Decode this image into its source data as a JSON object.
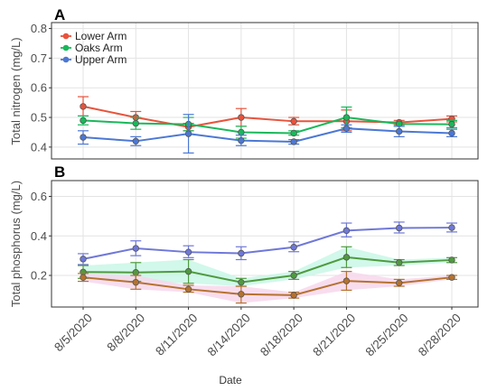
{
  "colors": {
    "lower_arm": "#e8533c",
    "oaks_arm": "#19b85a",
    "upper_arm": "#4c78d4",
    "panel_b_low": "#b5722f",
    "panel_b_mid": "#4f9a3f",
    "panel_b_high": "#6f78d8",
    "grid": "#e3e3e3",
    "panel_border": "#333333",
    "band_b_low": "#f7d7ec",
    "band_b_mid": "#c9f7e6"
  },
  "x_label": "Date",
  "chart_data": [
    {
      "panel": "A",
      "type": "line",
      "ylabel": "Total nitrogen (mg/L)",
      "ylim": [
        0.36,
        0.82
      ],
      "yticks": [
        0.4,
        0.5,
        0.6,
        0.7,
        0.8
      ],
      "grid": true,
      "legend_position": "top-left",
      "categories": [
        "8/5/2020",
        "8/8/2020",
        "8/11/2020",
        "8/14/2020",
        "8/18/2020",
        "8/21/2020",
        "8/25/2020",
        "8/28/2020"
      ],
      "series": [
        {
          "name": "Lower Arm",
          "color_key": "lower_arm",
          "values": [
            0.537,
            0.5,
            0.468,
            0.5,
            0.487,
            0.487,
            0.483,
            0.495
          ],
          "err_low": [
            0.505,
            0.48,
            0.455,
            0.47,
            0.475,
            0.455,
            0.475,
            0.485
          ],
          "err_high": [
            0.57,
            0.52,
            0.48,
            0.53,
            0.5,
            0.525,
            0.49,
            0.505
          ]
        },
        {
          "name": "Oaks Arm",
          "color_key": "oaks_arm",
          "values": [
            0.49,
            0.48,
            0.477,
            0.45,
            0.447,
            0.5,
            0.478,
            0.477
          ],
          "err_low": [
            0.475,
            0.46,
            0.455,
            0.43,
            0.44,
            0.465,
            0.47,
            0.465
          ],
          "err_high": [
            0.505,
            0.5,
            0.5,
            0.47,
            0.455,
            0.535,
            0.485,
            0.49
          ]
        },
        {
          "name": "Upper Arm",
          "color_key": "upper_arm",
          "values": [
            0.433,
            0.42,
            0.445,
            0.422,
            0.418,
            0.463,
            0.453,
            0.447
          ],
          "err_low": [
            0.41,
            0.405,
            0.38,
            0.405,
            0.41,
            0.45,
            0.435,
            0.435
          ],
          "err_high": [
            0.455,
            0.435,
            0.51,
            0.44,
            0.425,
            0.475,
            0.47,
            0.46
          ]
        }
      ]
    },
    {
      "panel": "B",
      "type": "line",
      "ylabel": "Total phosphorus (mg/L)",
      "ylim": [
        0.04,
        0.68
      ],
      "yticks": [
        0.2,
        0.4,
        0.6
      ],
      "grid": true,
      "categories": [
        "8/5/2020",
        "8/8/2020",
        "8/11/2020",
        "8/14/2020",
        "8/18/2020",
        "8/21/2020",
        "8/25/2020",
        "8/28/2020"
      ],
      "series": [
        {
          "color_key": "panel_b_high",
          "values": [
            0.283,
            0.337,
            0.318,
            0.312,
            0.343,
            0.427,
            0.44,
            0.442
          ],
          "err_low": [
            0.255,
            0.3,
            0.29,
            0.28,
            0.32,
            0.395,
            0.415,
            0.42
          ],
          "err_high": [
            0.31,
            0.375,
            0.35,
            0.345,
            0.37,
            0.465,
            0.47,
            0.465
          ]
        },
        {
          "color_key": "panel_b_mid",
          "values": [
            0.217,
            0.215,
            0.22,
            0.165,
            0.2,
            0.292,
            0.265,
            0.278
          ],
          "err_low": [
            0.185,
            0.17,
            0.16,
            0.145,
            0.18,
            0.24,
            0.25,
            0.265
          ],
          "err_high": [
            0.25,
            0.265,
            0.28,
            0.185,
            0.22,
            0.345,
            0.28,
            0.29
          ],
          "band_color_key": "band_b_mid"
        },
        {
          "color_key": "panel_b_low",
          "values": [
            0.19,
            0.165,
            0.13,
            0.105,
            0.1,
            0.172,
            0.162,
            0.19
          ],
          "err_low": [
            0.17,
            0.13,
            0.115,
            0.06,
            0.085,
            0.125,
            0.145,
            0.18
          ],
          "err_high": [
            0.21,
            0.2,
            0.15,
            0.145,
            0.115,
            0.22,
            0.18,
            0.2
          ],
          "band_color_key": "band_b_low"
        }
      ]
    }
  ]
}
